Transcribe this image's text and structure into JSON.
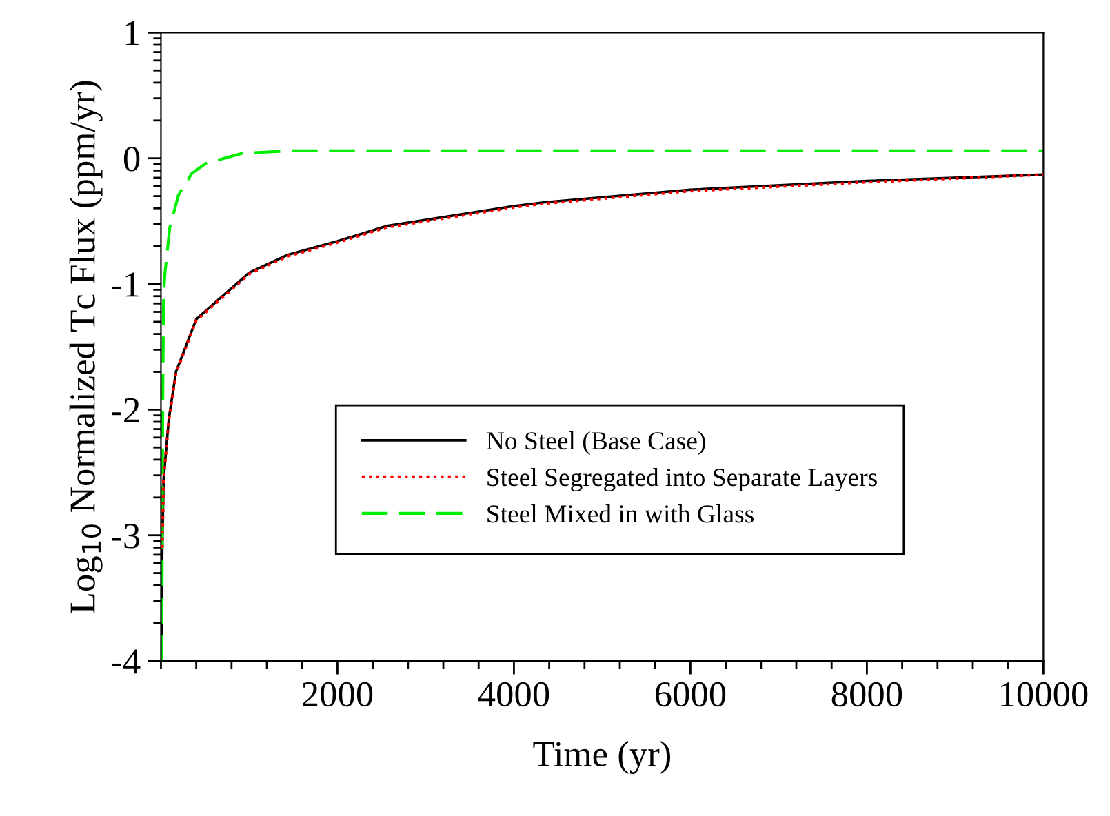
{
  "chart_data": {
    "type": "line",
    "xlabel": "Time (yr)",
    "ylabel": "Log$_{10}$ Normalized Tc Flux (ppm/yr)",
    "xlim": [
      0,
      10000
    ],
    "xticks": [
      2000,
      4000,
      6000,
      8000,
      10000
    ],
    "ylim": [
      -4,
      1
    ],
    "yticks": [
      -4,
      -3,
      -2,
      -1,
      0,
      1
    ],
    "legend": "bottom",
    "grid": false,
    "series": [
      {
        "name": "No Steel (Base Case)",
        "color": "#000000",
        "line_style": "solid",
        "x": [
          5,
          15,
          30,
          90,
          170,
          400,
          1000,
          1430,
          2000,
          2550,
          4000,
          4350,
          6000,
          8000,
          10000
        ],
        "values": [
          -4,
          -3.1,
          -2.55,
          -2.07,
          -1.7,
          -1.28,
          -0.91,
          -0.77,
          -0.66,
          -0.54,
          -0.38,
          -0.35,
          -0.25,
          -0.18,
          -0.13
        ]
      },
      {
        "name": "Steel Segregated into Separate Layers",
        "color": "#ff0000",
        "line_style": "dotted",
        "x": [
          15,
          30,
          90,
          170,
          400,
          1000,
          1430,
          2000,
          2550,
          4000,
          4350,
          6000,
          8000,
          10000
        ],
        "values": [
          -3.1,
          -2.55,
          -2.08,
          -1.71,
          -1.29,
          -0.92,
          -0.78,
          -0.67,
          -0.55,
          -0.39,
          -0.36,
          -0.26,
          -0.19,
          -0.13
        ]
      },
      {
        "name": "Steel Mixed in with Glass",
        "color": "#00ee00",
        "line_style": "dashed",
        "x": [
          10,
          20,
          30,
          46,
          100,
          200,
          350,
          510,
          920,
          1500,
          3000,
          6000,
          10000
        ],
        "values": [
          -4,
          -2,
          -1.08,
          -0.91,
          -0.55,
          -0.29,
          -0.12,
          -0.04,
          0.04,
          0.06,
          0.06,
          0.06,
          0.06
        ]
      }
    ]
  }
}
